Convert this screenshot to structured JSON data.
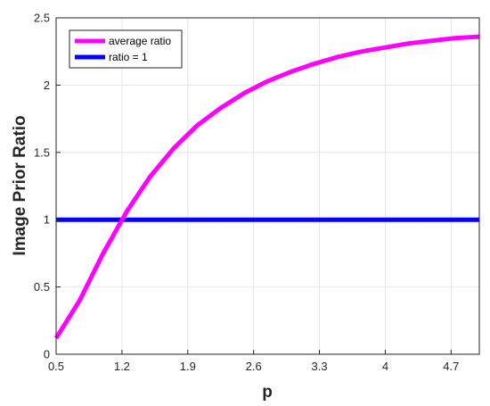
{
  "chart_data": {
    "type": "line",
    "title": "",
    "xlabel": "p",
    "ylabel": "Image Prior Ratio",
    "xlim": [
      0.5,
      5.0
    ],
    "ylim": [
      0,
      2.5
    ],
    "xticks": [
      0.5,
      1.2,
      1.9,
      2.6,
      3.3,
      4,
      4.7
    ],
    "xtick_labels": [
      "0.5",
      "1.2",
      "1.9",
      "2.6",
      "3.3",
      "4",
      "4.7"
    ],
    "yticks": [
      0,
      0.5,
      1,
      1.5,
      2,
      2.5
    ],
    "ytick_labels": [
      "0",
      "0.5",
      "1",
      "1.5",
      "2",
      "2.5"
    ],
    "grid": true,
    "legend_position": "top-left",
    "series": [
      {
        "name": "average ratio",
        "color": "#ff00ff",
        "x": [
          0.5,
          0.75,
          1.0,
          1.25,
          1.5,
          1.75,
          2.0,
          2.25,
          2.5,
          2.75,
          3.0,
          3.25,
          3.5,
          3.75,
          4.0,
          4.25,
          4.5,
          4.75,
          5.0
        ],
        "y": [
          0.12,
          0.4,
          0.75,
          1.06,
          1.32,
          1.53,
          1.7,
          1.83,
          1.94,
          2.03,
          2.1,
          2.16,
          2.21,
          2.25,
          2.28,
          2.31,
          2.33,
          2.35,
          2.36
        ]
      },
      {
        "name": "ratio = 1",
        "color": "#0000ff",
        "x": [
          0.5,
          5.0
        ],
        "y": [
          1,
          1
        ]
      }
    ]
  }
}
